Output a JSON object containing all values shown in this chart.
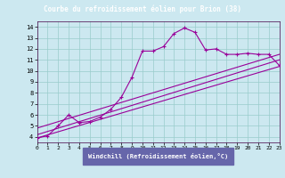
{
  "title": "Courbe du refroidissement éolien pour Brion (38)",
  "xlabel": "Windchill (Refroidissement éolien,°C)",
  "bg_color": "#cce8f0",
  "line_color": "#990099",
  "grid_color": "#99cccc",
  "title_bg": "#6666aa",
  "title_fg": "#ffffff",
  "xlim": [
    0,
    23
  ],
  "ylim": [
    3.5,
    14.5
  ],
  "xticks": [
    0,
    1,
    2,
    3,
    4,
    5,
    6,
    7,
    8,
    9,
    10,
    11,
    12,
    13,
    14,
    15,
    16,
    17,
    18,
    19,
    20,
    21,
    22,
    23
  ],
  "yticks": [
    4,
    5,
    6,
    7,
    8,
    9,
    10,
    11,
    12,
    13,
    14
  ],
  "curve_x": [
    0,
    1,
    2,
    3,
    4,
    5,
    6,
    7,
    8,
    9,
    10,
    11,
    12,
    13,
    14,
    15,
    16,
    17,
    18,
    19,
    20,
    21,
    22,
    23
  ],
  "curve_y": [
    3.9,
    4.1,
    5.0,
    6.0,
    5.3,
    5.4,
    5.8,
    6.5,
    7.6,
    9.4,
    11.8,
    11.8,
    12.2,
    13.4,
    13.9,
    13.5,
    11.9,
    12.0,
    11.5,
    11.5,
    11.6,
    11.5,
    11.5,
    10.5
  ],
  "line1_x": [
    0,
    23
  ],
  "line1_y": [
    4.2,
    11.0
  ],
  "line2_x": [
    0,
    23
  ],
  "line2_y": [
    4.8,
    11.5
  ],
  "line3_x": [
    0,
    23
  ],
  "line3_y": [
    3.9,
    10.4
  ]
}
